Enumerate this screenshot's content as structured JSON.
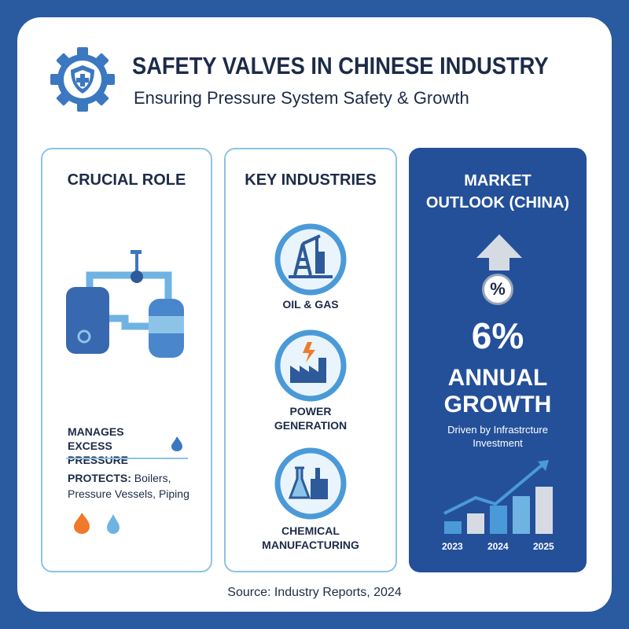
{
  "header": {
    "title": "SAFETY VALVES IN CHINESE INDUSTRY",
    "subtitle": "Ensuring Pressure System Safety & Growth"
  },
  "panels": {
    "role": {
      "title": "CRUCIAL ROLE",
      "manages": "MANAGES EXCESS PRESSURE",
      "protects_label": "PROTECTS:",
      "protects": "Boilers, Pressure Vessels, Piping"
    },
    "industries": {
      "title": "KEY INDUSTRIES",
      "items": [
        "OIL & GAS",
        "POWER GENERATION",
        "CHEMICAL MANUFACTURING"
      ]
    },
    "outlook": {
      "title": "MARKET OUTLOOK (CHINA)",
      "symbol": "%",
      "value": "6%",
      "label": "ANNUAL GROWTH",
      "note": "Driven by Infrastrcture Investment",
      "years": [
        "2023",
        "2024",
        "2025"
      ]
    }
  },
  "footer": {
    "source": "Source: Industry Reports, 2024"
  }
}
